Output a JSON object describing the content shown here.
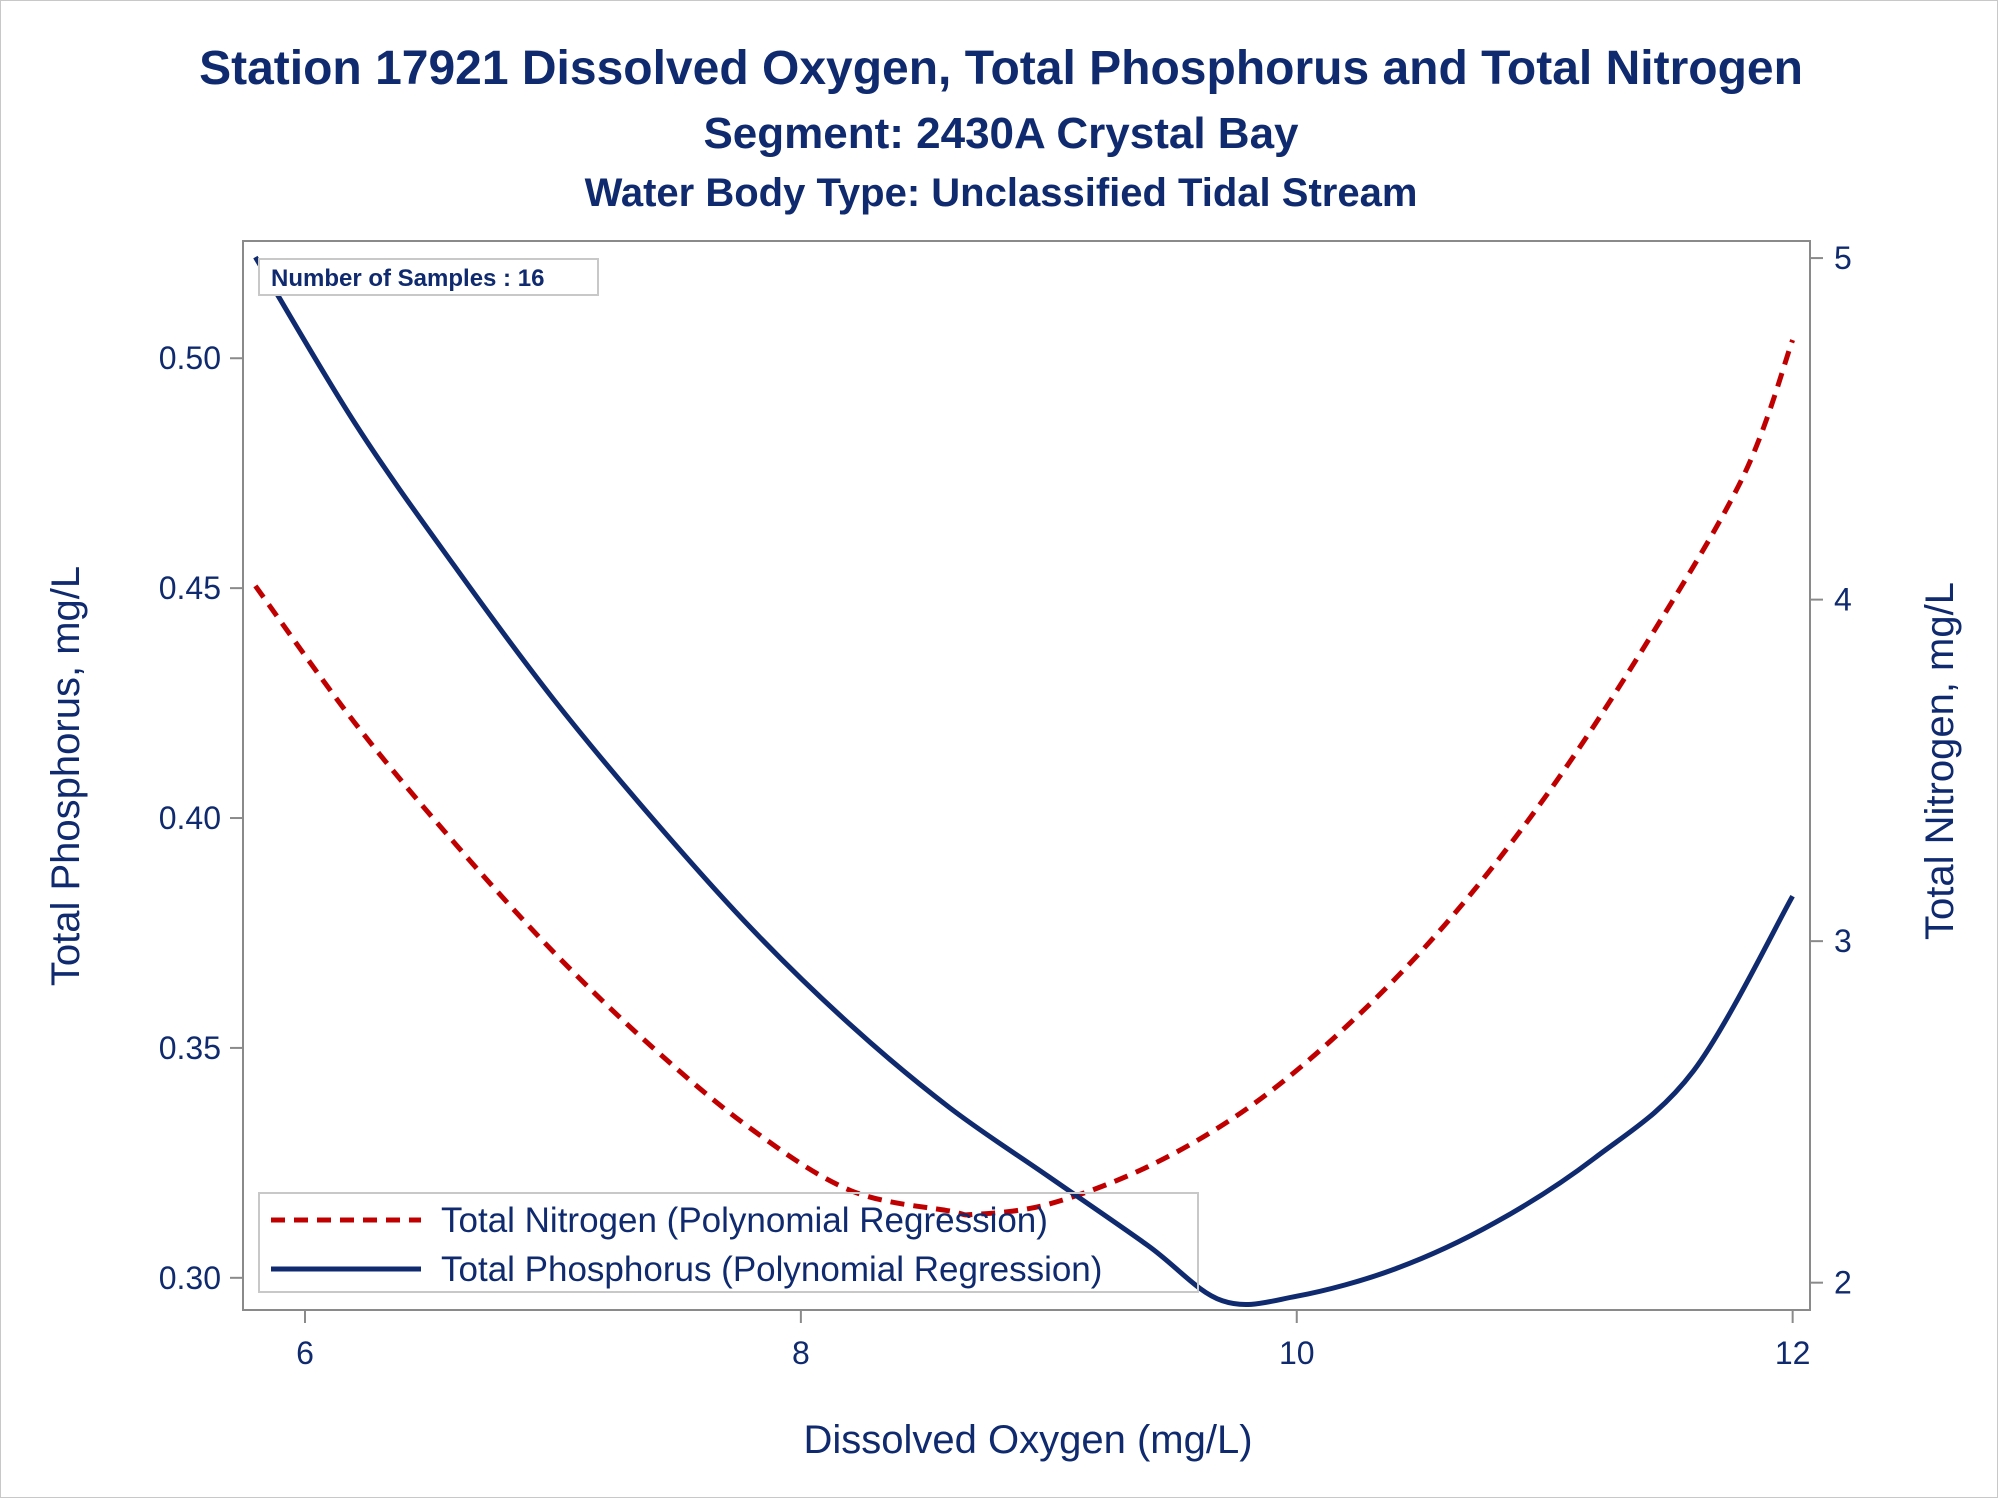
{
  "chart_data": {
    "type": "line",
    "title": "Station 17921  Dissolved Oxygen, Total Phosphorus and Total Nitrogen",
    "subtitle": "Segment: 2430A  Crystal Bay",
    "subtitle2": "Water Body Type: Unclassified Tidal Stream",
    "xlabel": "Dissolved Oxygen (mg/L)",
    "ylabel_left": "Total Phosphorus, mg/L",
    "ylabel_right": "Total Nitrogen, mg/L",
    "xlim": [
      5.75,
      12.07
    ],
    "ylim_left": [
      0.293,
      0.5255
    ],
    "ylim_right": [
      1.92,
      5.05
    ],
    "x_ticks": [
      "6",
      "8",
      "10",
      "12"
    ],
    "y_left_ticks": [
      "0.30",
      "0.35",
      "0.40",
      "0.45",
      "0.50"
    ],
    "y_right_ticks": [
      "2",
      "3",
      "4",
      "5"
    ],
    "annotation": "Number of Samples : 16",
    "legend_position": "bottom-left inside",
    "series": [
      {
        "name": "Total Nitrogen (Polynomial Regression)",
        "axis": "right",
        "style": "dashed",
        "color": "#c00000",
        "x": [
          5.8,
          6.2,
          6.6,
          7.0,
          7.4,
          7.8,
          8.2,
          8.6,
          8.7,
          9.0,
          9.4,
          9.8,
          10.2,
          10.6,
          11.0,
          11.4,
          11.8,
          12.0
        ],
        "values": [
          4.04,
          3.64,
          3.29,
          2.97,
          2.69,
          2.45,
          2.27,
          2.21,
          2.2,
          2.23,
          2.34,
          2.51,
          2.75,
          3.05,
          3.42,
          3.86,
          4.36,
          4.76
        ]
      },
      {
        "name": "Total Phosphorus (Polynomial Regression)",
        "axis": "left",
        "style": "solid",
        "color": "#0f2a6e",
        "x": [
          5.8,
          6.2,
          6.6,
          7.0,
          7.4,
          7.8,
          8.2,
          8.6,
          9.0,
          9.4,
          9.7,
          10.0,
          10.4,
          10.8,
          11.2,
          11.6,
          12.0
        ],
        "values": [
          0.522,
          0.486,
          0.455,
          0.426,
          0.4,
          0.376,
          0.355,
          0.337,
          0.322,
          0.307,
          0.295,
          0.296,
          0.302,
          0.312,
          0.326,
          0.345,
          0.383
        ]
      }
    ]
  }
}
